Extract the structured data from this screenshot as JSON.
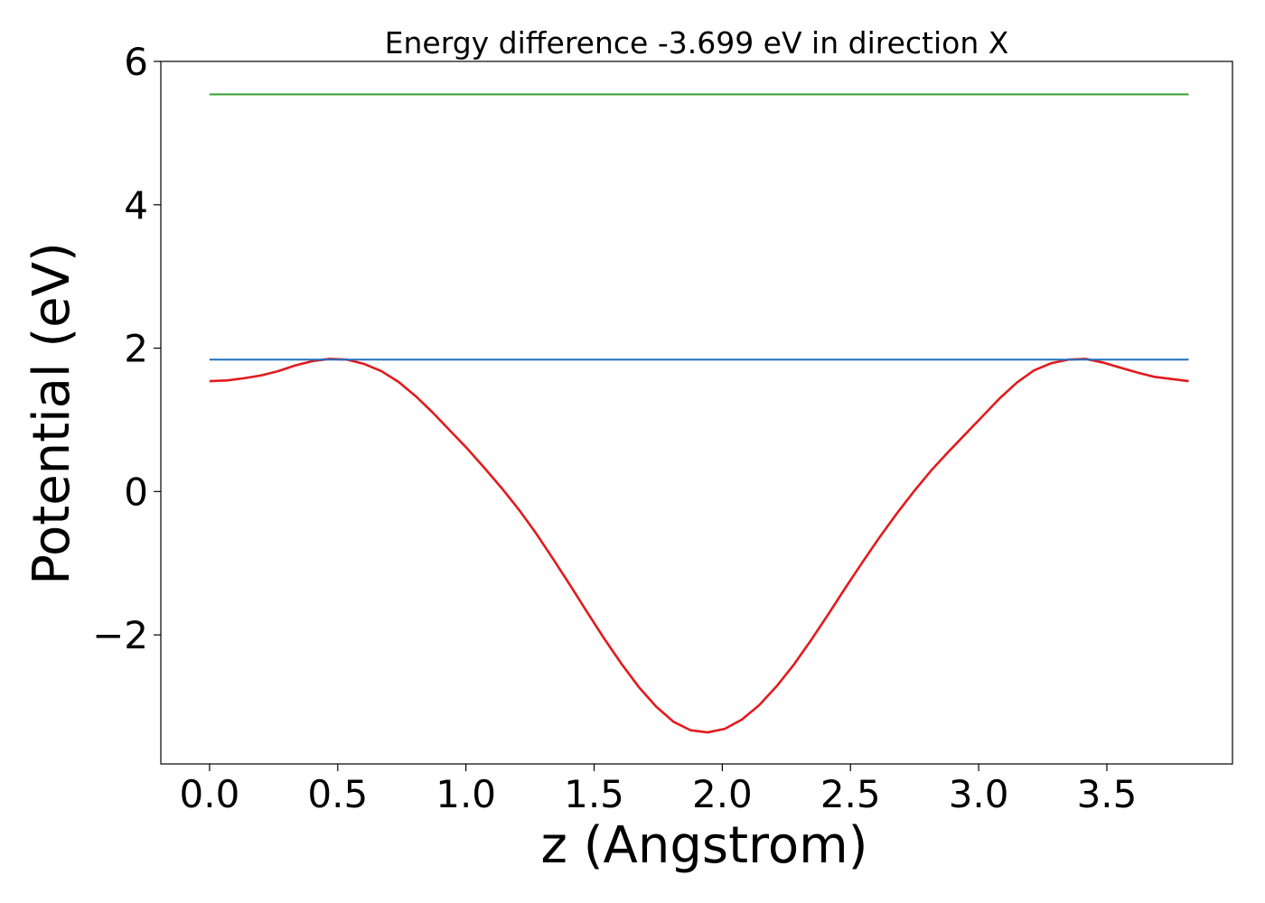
{
  "chart_data": {
    "type": "line",
    "title": "Energy difference -3.699 eV in direction X",
    "xlabel": "z (Angstrom)",
    "ylabel": "Potential (eV)",
    "xlim": [
      -0.19,
      3.99
    ],
    "ylim": [
      -3.8,
      6.0
    ],
    "xticks": [
      0.0,
      0.5,
      1.0,
      1.5,
      2.0,
      2.5,
      3.0,
      3.5
    ],
    "xtick_labels": [
      "0.0",
      "0.5",
      "1.0",
      "1.5",
      "2.0",
      "2.5",
      "3.0",
      "3.5"
    ],
    "yticks": [
      -2,
      0,
      2,
      4,
      6
    ],
    "ytick_labels": [
      "−2",
      "0",
      "2",
      "4",
      "6"
    ],
    "grid": false,
    "legend": "none",
    "series": [
      {
        "color": "#e31a1c",
        "x": [
          0.0,
          0.067,
          0.134,
          0.201,
          0.268,
          0.335,
          0.402,
          0.469,
          0.536,
          0.603,
          0.67,
          0.737,
          0.804,
          0.871,
          0.938,
          1.005,
          1.072,
          1.139,
          1.206,
          1.273,
          1.34,
          1.407,
          1.474,
          1.541,
          1.608,
          1.675,
          1.742,
          1.809,
          1.876,
          1.943,
          2.01,
          2.077,
          2.144,
          2.211,
          2.278,
          2.345,
          2.412,
          2.479,
          2.546,
          2.613,
          2.68,
          2.747,
          2.814,
          2.881,
          2.948,
          3.015,
          3.082,
          3.149,
          3.216,
          3.283,
          3.35,
          3.417,
          3.484,
          3.551,
          3.618,
          3.685,
          3.752,
          3.819
        ],
        "y": [
          1.54,
          1.55,
          1.58,
          1.62,
          1.68,
          1.76,
          1.82,
          1.85,
          1.84,
          1.78,
          1.68,
          1.53,
          1.33,
          1.1,
          0.85,
          0.6,
          0.33,
          0.05,
          -0.25,
          -0.58,
          -0.94,
          -1.31,
          -1.69,
          -2.06,
          -2.41,
          -2.73,
          -3.0,
          -3.21,
          -3.33,
          -3.36,
          -3.31,
          -3.18,
          -2.98,
          -2.72,
          -2.42,
          -2.08,
          -1.72,
          -1.35,
          -0.99,
          -0.64,
          -0.31,
          0.0,
          0.29,
          0.55,
          0.8,
          1.05,
          1.3,
          1.52,
          1.69,
          1.79,
          1.84,
          1.85,
          1.8,
          1.73,
          1.66,
          1.6,
          1.57,
          1.54
        ]
      },
      {
        "color": "#1f6fbf",
        "x": [
          0.0,
          3.819
        ],
        "y": [
          1.84,
          1.84
        ]
      },
      {
        "color": "#33a02c",
        "x": [
          0.0,
          3.819
        ],
        "y": [
          5.54,
          5.54
        ]
      }
    ]
  }
}
